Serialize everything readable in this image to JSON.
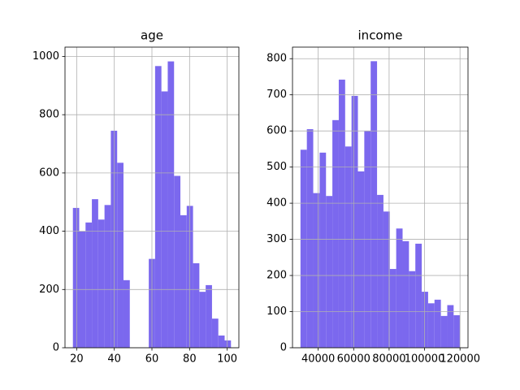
{
  "chart_data": [
    {
      "type": "histogram",
      "title": "age",
      "color": "#7b68ee",
      "grid": true,
      "bins": [
        18,
        21.36,
        24.72,
        28.08,
        31.44,
        34.8,
        38.16,
        41.52,
        44.88,
        48.24,
        51.6,
        54.96,
        58.32,
        61.68,
        65.04,
        68.4,
        71.76,
        75.12,
        78.48,
        81.84,
        85.2,
        88.56,
        91.92,
        95.28,
        98.64,
        102
      ],
      "values": [
        480,
        400,
        430,
        510,
        440,
        490,
        745,
        635,
        232,
        0,
        0,
        0,
        305,
        967,
        880,
        983,
        590,
        455,
        487,
        290,
        192,
        215,
        100,
        42,
        25
      ],
      "xlim": [
        13.8,
        106.2
      ],
      "xticks": [
        20,
        40,
        60,
        80,
        100
      ],
      "ylim": [
        0,
        1032
      ],
      "yticks": [
        0,
        200,
        400,
        600,
        800,
        1000
      ]
    },
    {
      "type": "histogram",
      "title": "income",
      "color": "#7b68ee",
      "grid": true,
      "bins": [
        30000,
        33600,
        37200,
        40800,
        44400,
        48000,
        51600,
        55200,
        58800,
        62400,
        66000,
        69600,
        73200,
        76800,
        80400,
        84000,
        87600,
        91200,
        94800,
        98400,
        102000,
        105600,
        109200,
        112800,
        116400,
        120000
      ],
      "values": [
        548,
        605,
        428,
        540,
        420,
        630,
        742,
        557,
        697,
        488,
        600,
        793,
        423,
        377,
        218,
        330,
        295,
        212,
        288,
        155,
        123,
        133,
        88,
        118,
        90
      ],
      "xlim": [
        25500,
        124500
      ],
      "xticks": [
        40000,
        60000,
        80000,
        100000,
        120000
      ],
      "ylim": [
        0,
        832
      ],
      "yticks": [
        0,
        100,
        200,
        300,
        400,
        500,
        600,
        700,
        800
      ]
    }
  ]
}
